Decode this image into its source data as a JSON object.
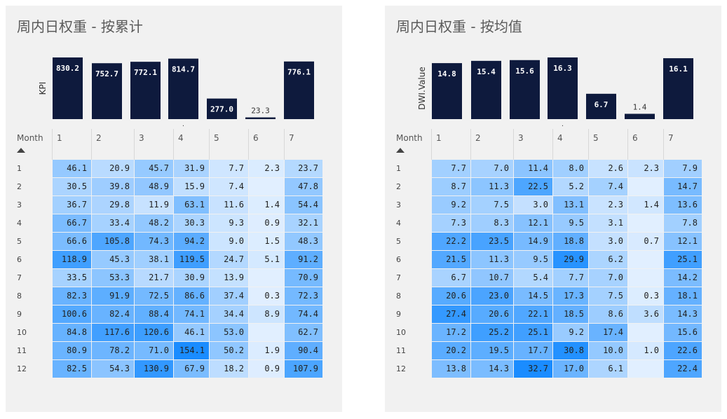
{
  "panels": [
    {
      "title": "周内日权重 - 按累计",
      "chart_data": {
        "type": "bar",
        "ylabel": "KPI",
        "categories": [
          "1",
          "2",
          "3",
          "4",
          "5",
          "6",
          "7"
        ],
        "values": [
          830.2,
          752.7,
          772.1,
          814.7,
          277.0,
          23.3,
          776.1
        ],
        "labels": [
          "830.2",
          "752.7",
          "772.1",
          "814.7",
          "277.0",
          "23.3",
          "776.1"
        ],
        "x_marker": "."
      },
      "table": {
        "type": "heatmap",
        "row_header": "Month",
        "columns": [
          "1",
          "2",
          "3",
          "4",
          "5",
          "6",
          "7"
        ],
        "rows": [
          {
            "label": "1",
            "values": [
              46.1,
              20.9,
              45.7,
              31.9,
              7.7,
              2.3,
              23.7
            ],
            "text": [
              "46.1",
              "20.9",
              "45.7",
              "31.9",
              "7.7",
              "2.3",
              "23.7"
            ]
          },
          {
            "label": "2",
            "values": [
              30.5,
              39.8,
              48.9,
              15.9,
              7.4,
              null,
              47.8
            ],
            "text": [
              "30.5",
              "39.8",
              "48.9",
              "15.9",
              "7.4",
              "",
              "47.8"
            ]
          },
          {
            "label": "3",
            "values": [
              36.7,
              29.8,
              11.9,
              63.1,
              11.6,
              1.4,
              54.4
            ],
            "text": [
              "36.7",
              "29.8",
              "11.9",
              "63.1",
              "11.6",
              "1.4",
              "54.4"
            ]
          },
          {
            "label": "4",
            "values": [
              66.7,
              33.4,
              48.2,
              30.3,
              9.3,
              0.9,
              32.1
            ],
            "text": [
              "66.7",
              "33.4",
              "48.2",
              "30.3",
              "9.3",
              "0.9",
              "32.1"
            ]
          },
          {
            "label": "5",
            "values": [
              66.6,
              105.8,
              74.3,
              94.2,
              9.0,
              1.5,
              48.3
            ],
            "text": [
              "66.6",
              "105.8",
              "74.3",
              "94.2",
              "9.0",
              "1.5",
              "48.3"
            ]
          },
          {
            "label": "6",
            "values": [
              118.9,
              45.3,
              38.1,
              119.5,
              24.7,
              5.1,
              91.2
            ],
            "text": [
              "118.9",
              "45.3",
              "38.1",
              "119.5",
              "24.7",
              "5.1",
              "91.2"
            ]
          },
          {
            "label": "7",
            "values": [
              33.5,
              53.3,
              21.7,
              30.9,
              13.9,
              null,
              70.9
            ],
            "text": [
              "33.5",
              "53.3",
              "21.7",
              "30.9",
              "13.9",
              "",
              "70.9"
            ]
          },
          {
            "label": "8",
            "values": [
              82.3,
              91.9,
              72.5,
              86.6,
              37.4,
              0.3,
              72.3
            ],
            "text": [
              "82.3",
              "91.9",
              "72.5",
              "86.6",
              "37.4",
              "0.3",
              "72.3"
            ]
          },
          {
            "label": "9",
            "values": [
              100.6,
              82.4,
              88.4,
              74.1,
              34.4,
              8.9,
              74.4
            ],
            "text": [
              "100.6",
              "82.4",
              "88.4",
              "74.1",
              "34.4",
              "8.9",
              "74.4"
            ]
          },
          {
            "label": "10",
            "values": [
              84.8,
              117.6,
              120.6,
              46.1,
              53.0,
              null,
              62.7
            ],
            "text": [
              "84.8",
              "117.6",
              "120.6",
              "46.1",
              "53.0",
              "",
              "62.7"
            ]
          },
          {
            "label": "11",
            "values": [
              80.9,
              78.2,
              71.0,
              154.1,
              50.2,
              1.9,
              90.4
            ],
            "text": [
              "80.9",
              "78.2",
              "71.0",
              "154.1",
              "50.2",
              "1.9",
              "90.4"
            ]
          },
          {
            "label": "12",
            "values": [
              82.5,
              54.3,
              130.9,
              67.9,
              18.2,
              0.9,
              107.9
            ],
            "text": [
              "82.5",
              "54.3",
              "130.9",
              "67.9",
              "18.2",
              "0.9",
              "107.9"
            ]
          }
        ]
      }
    },
    {
      "title": "周内日权重 - 按均值",
      "chart_data": {
        "type": "bar",
        "ylabel": "DWI.Value",
        "categories": [
          "1",
          "2",
          "3",
          "4",
          "5",
          "6",
          "7"
        ],
        "values": [
          14.8,
          15.4,
          15.6,
          16.3,
          6.7,
          1.4,
          16.1
        ],
        "labels": [
          "14.8",
          "15.4",
          "15.6",
          "16.3",
          "6.7",
          "1.4",
          "16.1"
        ],
        "x_marker": "."
      },
      "table": {
        "type": "heatmap",
        "row_header": "Month",
        "columns": [
          "1",
          "2",
          "3",
          "4",
          "5",
          "6",
          "7"
        ],
        "rows": [
          {
            "label": "1",
            "values": [
              7.7,
              7.0,
              11.4,
              8.0,
              2.6,
              2.3,
              7.9
            ],
            "text": [
              "7.7",
              "7.0",
              "11.4",
              "8.0",
              "2.6",
              "2.3",
              "7.9"
            ]
          },
          {
            "label": "2",
            "values": [
              8.7,
              11.3,
              22.5,
              5.2,
              7.4,
              null,
              14.7
            ],
            "text": [
              "8.7",
              "11.3",
              "22.5",
              "5.2",
              "7.4",
              "",
              "14.7"
            ]
          },
          {
            "label": "3",
            "values": [
              9.2,
              7.5,
              3.0,
              13.1,
              2.3,
              1.4,
              13.6
            ],
            "text": [
              "9.2",
              "7.5",
              "3.0",
              "13.1",
              "2.3",
              "1.4",
              "13.6"
            ]
          },
          {
            "label": "4",
            "values": [
              7.3,
              8.3,
              12.1,
              9.5,
              3.1,
              null,
              7.8
            ],
            "text": [
              "7.3",
              "8.3",
              "12.1",
              "9.5",
              "3.1",
              "",
              "7.8"
            ]
          },
          {
            "label": "5",
            "values": [
              22.2,
              23.5,
              14.9,
              18.8,
              3.0,
              0.7,
              12.1
            ],
            "text": [
              "22.2",
              "23.5",
              "14.9",
              "18.8",
              "3.0",
              "0.7",
              "12.1"
            ]
          },
          {
            "label": "6",
            "values": [
              21.5,
              11.3,
              9.5,
              29.9,
              6.2,
              null,
              25.1
            ],
            "text": [
              "21.5",
              "11.3",
              "9.5",
              "29.9",
              "6.2",
              "",
              "25.1"
            ]
          },
          {
            "label": "7",
            "values": [
              6.7,
              10.7,
              5.4,
              7.7,
              7.0,
              null,
              14.2
            ],
            "text": [
              "6.7",
              "10.7",
              "5.4",
              "7.7",
              "7.0",
              "",
              "14.2"
            ]
          },
          {
            "label": "8",
            "values": [
              20.6,
              23.0,
              14.5,
              17.3,
              7.5,
              0.3,
              18.1
            ],
            "text": [
              "20.6",
              "23.0",
              "14.5",
              "17.3",
              "7.5",
              "0.3",
              "18.1"
            ]
          },
          {
            "label": "9",
            "values": [
              27.4,
              20.6,
              22.1,
              18.5,
              8.6,
              3.6,
              14.3
            ],
            "text": [
              "27.4",
              "20.6",
              "22.1",
              "18.5",
              "8.6",
              "3.6",
              "14.3"
            ]
          },
          {
            "label": "10",
            "values": [
              17.2,
              25.2,
              25.1,
              9.2,
              17.4,
              null,
              15.6
            ],
            "text": [
              "17.2",
              "25.2",
              "25.1",
              "9.2",
              "17.4",
              "",
              "15.6"
            ]
          },
          {
            "label": "11",
            "values": [
              20.2,
              19.5,
              17.7,
              30.8,
              10.0,
              1.0,
              22.6
            ],
            "text": [
              "20.2",
              "19.5",
              "17.7",
              "30.8",
              "10.0",
              "1.0",
              "22.6"
            ]
          },
          {
            "label": "12",
            "values": [
              13.8,
              14.3,
              32.7,
              17.0,
              6.1,
              null,
              22.4
            ],
            "text": [
              "13.8",
              "14.3",
              "32.7",
              "17.0",
              "6.1",
              "",
              "22.4"
            ]
          }
        ]
      }
    }
  ],
  "colors": {
    "bar": "#0e1a3d",
    "bar_label_inside": "#ffffff",
    "bar_label_outside": "#333333",
    "heat_low": "#e1efff",
    "heat_high": "#1a8cff"
  }
}
